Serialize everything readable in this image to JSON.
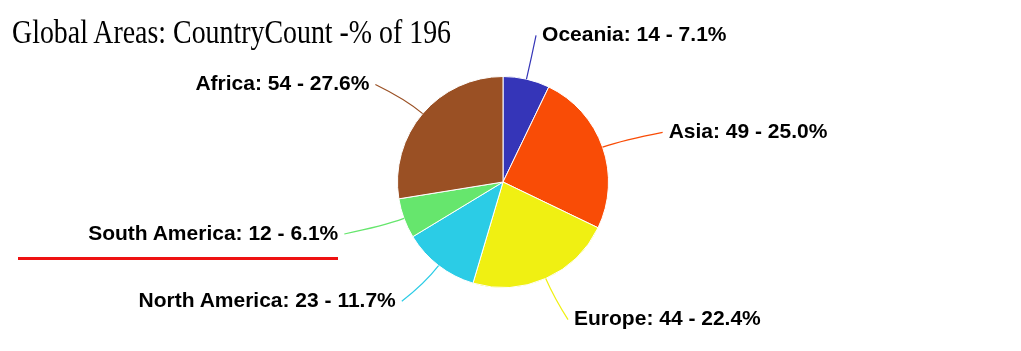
{
  "chart_data": {
    "type": "pie",
    "title": "Global Areas: CountryCount -% of 196",
    "categories": [
      "Oceania",
      "Asia",
      "Europe",
      "North America",
      "South America",
      "Africa"
    ],
    "values": [
      14,
      49,
      44,
      23,
      12,
      54
    ],
    "value_labels": [
      "14 - 7.1%",
      "49 - 25.0%",
      "44 - 22.4%",
      "23 - 11.7%",
      "12 - 6.1%",
      "54 - 27.6%"
    ],
    "colors": [
      "#3535b8",
      "#f94c06",
      "#f0f012",
      "#2bcce6",
      "#66e66d",
      "#9a5024"
    ],
    "legend": false
  }
}
